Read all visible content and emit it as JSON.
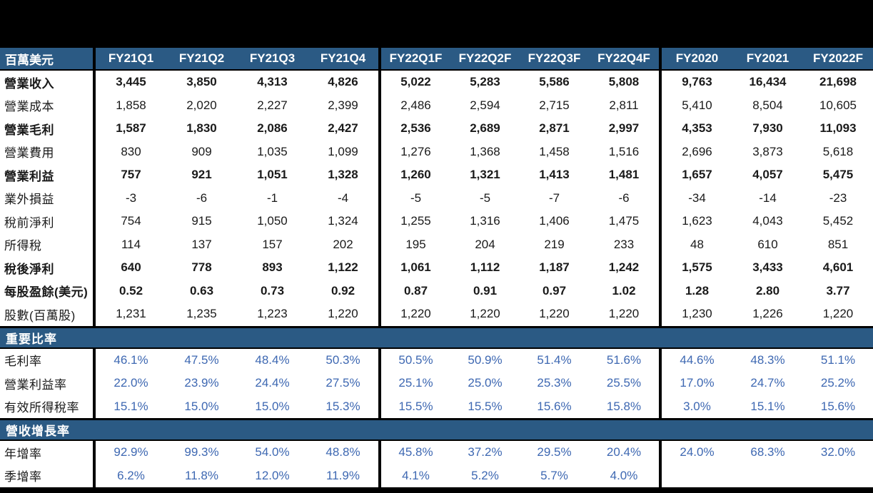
{
  "unit_label": "百萬美元",
  "columns": [
    "FY21Q1",
    "FY21Q2",
    "FY21Q3",
    "FY21Q4",
    "FY22Q1F",
    "FY22Q2F",
    "FY22Q3F",
    "FY22Q4F",
    "FY2020",
    "FY2021",
    "FY2022F"
  ],
  "colors": {
    "band_blue": "#2B5A84",
    "percent_text_blue": "#3E68B2",
    "body_text": "#1a1a1a",
    "background": "#000000",
    "row_background": "#ffffff"
  },
  "sections": [
    {
      "type": "rows",
      "style": "normal",
      "rows": [
        {
          "label": "營業收入",
          "bold": true,
          "values": [
            "3,445",
            "3,850",
            "4,313",
            "4,826",
            "5,022",
            "5,283",
            "5,586",
            "5,808",
            "9,763",
            "16,434",
            "21,698"
          ]
        },
        {
          "label": "營業成本",
          "bold": false,
          "values": [
            "1,858",
            "2,020",
            "2,227",
            "2,399",
            "2,486",
            "2,594",
            "2,715",
            "2,811",
            "5,410",
            "8,504",
            "10,605"
          ]
        },
        {
          "label": "營業毛利",
          "bold": true,
          "values": [
            "1,587",
            "1,830",
            "2,086",
            "2,427",
            "2,536",
            "2,689",
            "2,871",
            "2,997",
            "4,353",
            "7,930",
            "11,093"
          ]
        },
        {
          "label": "營業費用",
          "bold": false,
          "values": [
            "830",
            "909",
            "1,035",
            "1,099",
            "1,276",
            "1,368",
            "1,458",
            "1,516",
            "2,696",
            "3,873",
            "5,618"
          ]
        },
        {
          "label": "營業利益",
          "bold": true,
          "values": [
            "757",
            "921",
            "1,051",
            "1,328",
            "1,260",
            "1,321",
            "1,413",
            "1,481",
            "1,657",
            "4,057",
            "5,475"
          ]
        },
        {
          "label": "業外損益",
          "bold": false,
          "values": [
            "-3",
            "-6",
            "-1",
            "-4",
            "-5",
            "-5",
            "-7",
            "-6",
            "-34",
            "-14",
            "-23"
          ]
        },
        {
          "label": "稅前淨利",
          "bold": false,
          "values": [
            "754",
            "915",
            "1,050",
            "1,324",
            "1,255",
            "1,316",
            "1,406",
            "1,475",
            "1,623",
            "4,043",
            "5,452"
          ]
        },
        {
          "label": "所得稅",
          "bold": false,
          "values": [
            "114",
            "137",
            "157",
            "202",
            "195",
            "204",
            "219",
            "233",
            "48",
            "610",
            "851"
          ]
        },
        {
          "label": "稅後淨利",
          "bold": true,
          "values": [
            "640",
            "778",
            "893",
            "1,122",
            "1,061",
            "1,112",
            "1,187",
            "1,242",
            "1,575",
            "3,433",
            "4,601"
          ]
        },
        {
          "label": "每股盈餘(美元)",
          "bold": true,
          "values": [
            "0.52",
            "0.63",
            "0.73",
            "0.92",
            "0.87",
            "0.91",
            "0.97",
            "1.02",
            "1.28",
            "2.80",
            "3.77"
          ]
        },
        {
          "label": "股數(百萬股)",
          "bold": false,
          "values": [
            "1,231",
            "1,235",
            "1,223",
            "1,220",
            "1,220",
            "1,220",
            "1,220",
            "1,220",
            "1,230",
            "1,226",
            "1,220"
          ]
        }
      ]
    },
    {
      "type": "band",
      "title": "重要比率"
    },
    {
      "type": "rows",
      "style": "percent",
      "rows": [
        {
          "label": "毛利率",
          "bold": false,
          "values": [
            "46.1%",
            "47.5%",
            "48.4%",
            "50.3%",
            "50.5%",
            "50.9%",
            "51.4%",
            "51.6%",
            "44.6%",
            "48.3%",
            "51.1%"
          ]
        },
        {
          "label": "營業利益率",
          "bold": false,
          "values": [
            "22.0%",
            "23.9%",
            "24.4%",
            "27.5%",
            "25.1%",
            "25.0%",
            "25.3%",
            "25.5%",
            "17.0%",
            "24.7%",
            "25.2%"
          ]
        },
        {
          "label": "有效所得稅率",
          "bold": false,
          "values": [
            "15.1%",
            "15.0%",
            "15.0%",
            "15.3%",
            "15.5%",
            "15.5%",
            "15.6%",
            "15.8%",
            "3.0%",
            "15.1%",
            "15.6%"
          ]
        }
      ]
    },
    {
      "type": "band",
      "title": "營收增長率"
    },
    {
      "type": "rows",
      "style": "percent",
      "rows": [
        {
          "label": "年增率",
          "bold": false,
          "values": [
            "92.9%",
            "99.3%",
            "54.0%",
            "48.8%",
            "45.8%",
            "37.2%",
            "29.5%",
            "20.4%",
            "24.0%",
            "68.3%",
            "32.0%"
          ]
        },
        {
          "label": "季增率",
          "bold": false,
          "values": [
            "6.2%",
            "11.8%",
            "12.0%",
            "11.9%",
            "4.1%",
            "5.2%",
            "5.7%",
            "4.0%",
            "",
            "",
            ""
          ]
        }
      ]
    }
  ]
}
